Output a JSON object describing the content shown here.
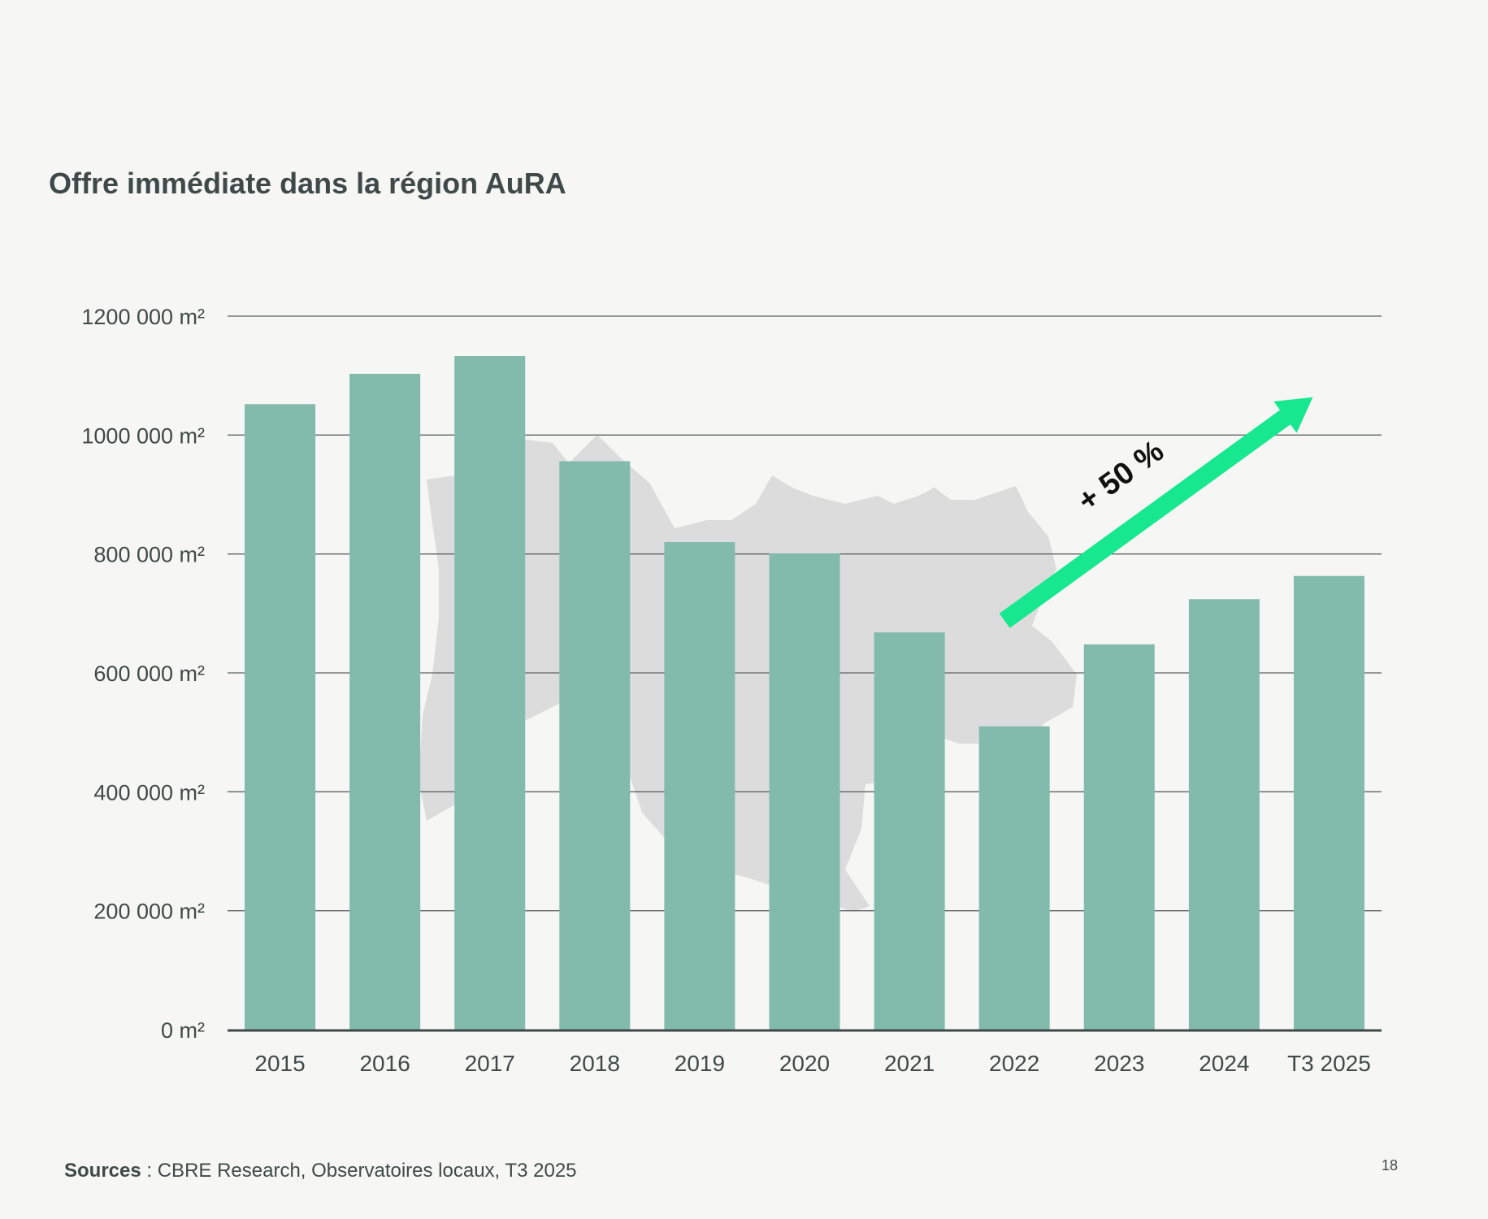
{
  "chart_data": {
    "type": "bar",
    "title": "Offre immédiate dans la région AuRA",
    "categories": [
      "2015",
      "2016",
      "2017",
      "2018",
      "2019",
      "2020",
      "2021",
      "2022",
      "2023",
      "2024",
      "T3 2025"
    ],
    "values": [
      1052000,
      1103000,
      1133000,
      956000,
      820000,
      801000,
      668000,
      510000,
      648000,
      724000,
      763000
    ],
    "ylim": [
      0,
      1200000
    ],
    "yticks": [
      {
        "value": 0,
        "label": "0 m²"
      },
      {
        "value": 200000,
        "label": "200 000 m²"
      },
      {
        "value": 400000,
        "label": "400 000 m²"
      },
      {
        "value": 600000,
        "label": "600 000 m²"
      },
      {
        "value": 800000,
        "label": "800 000 m²"
      },
      {
        "value": 1000000,
        "label": "1000 000 m²"
      },
      {
        "value": 1200000,
        "label": "1200 000 m²"
      }
    ],
    "xlabel": "",
    "ylabel": "",
    "grid": true,
    "bar_color": "#82baac",
    "annotation": {
      "text": "+ 50 %",
      "from_category": "2022",
      "to_category": "T3 2025",
      "arrow_color": "#17e88f"
    }
  },
  "footer": {
    "sources_label": "Sources",
    "sources_text": " : CBRE Research, Observatoires locaux, T3 2025"
  },
  "page_number": "18",
  "colors": {
    "text": "#3f4a48",
    "grid": "#5c6462",
    "background": "#f6f6f5",
    "map": "#dcdcdc"
  }
}
